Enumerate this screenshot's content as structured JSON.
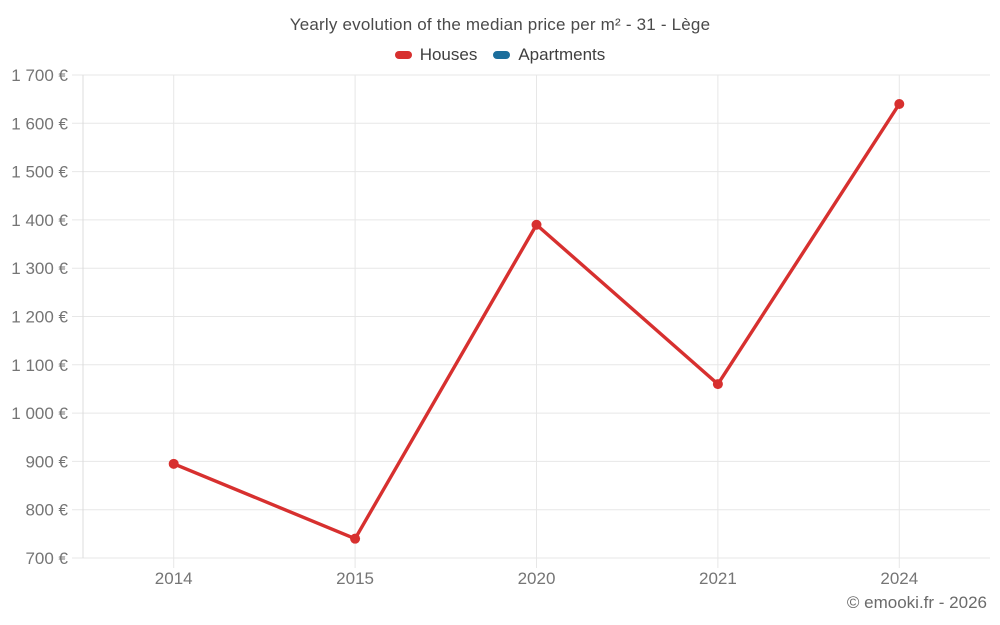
{
  "footer": {
    "credit": "© emooki.fr - 2026"
  },
  "colors": {
    "houses": "#d7302f",
    "apartments": "#1c6e9c",
    "grid": "#e7e7e7",
    "axis_border": "#dcdcdc",
    "tick_text": "#757575",
    "title_text": "#4a4a4a",
    "legend_text": "#3f3f3f",
    "footer_text": "#6b6b6b",
    "background": "#ffffff"
  },
  "chart_data": {
    "type": "line",
    "title": "Yearly evolution of the median price per m² - 31 - Lège",
    "categories": [
      "2014",
      "2015",
      "2020",
      "2021",
      "2024"
    ],
    "series": [
      {
        "name": "Houses",
        "color": "#d7302f",
        "values": [
          895,
          740,
          1390,
          1060,
          1640
        ]
      },
      {
        "name": "Apartments",
        "color": "#1c6e9c",
        "values": []
      }
    ],
    "xlabel": "",
    "ylabel": "",
    "ylim": [
      700,
      1700
    ],
    "ytick_step": 100,
    "ytick_labels": [
      "700 €",
      "800 €",
      "900 €",
      "1 000 €",
      "1 100 €",
      "1 200 €",
      "1 300 €",
      "1 400 €",
      "1 500 €",
      "1 600 €",
      "1 700 €"
    ],
    "grid": true,
    "legend_position": "top",
    "currency": "€"
  }
}
